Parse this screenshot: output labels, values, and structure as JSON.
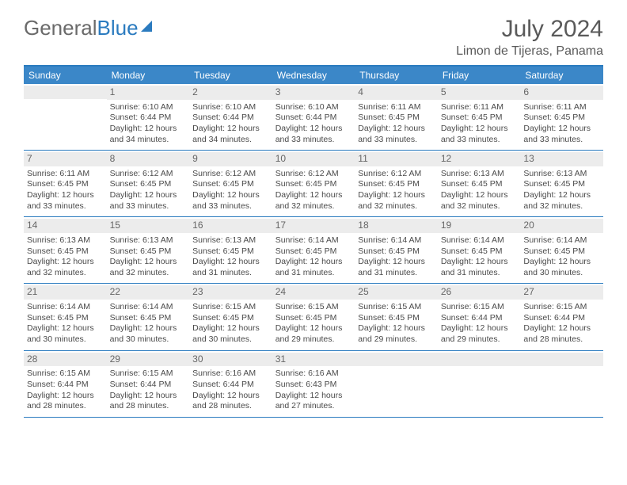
{
  "logo": {
    "part1": "General",
    "part2": "Blue"
  },
  "header": {
    "title": "July 2024",
    "location": "Limon de Tijeras, Panama"
  },
  "colors": {
    "brand_blue": "#2b7bbf",
    "header_bar": "#3b87c8",
    "daynum_bg": "#ececec",
    "text_gray": "#5a5a5a",
    "body_text": "#4a4a4a"
  },
  "weekdays": [
    "Sunday",
    "Monday",
    "Tuesday",
    "Wednesday",
    "Thursday",
    "Friday",
    "Saturday"
  ],
  "weeks": [
    [
      {
        "num": "",
        "lines": []
      },
      {
        "num": "1",
        "lines": [
          "Sunrise: 6:10 AM",
          "Sunset: 6:44 PM",
          "Daylight: 12 hours",
          "and 34 minutes."
        ]
      },
      {
        "num": "2",
        "lines": [
          "Sunrise: 6:10 AM",
          "Sunset: 6:44 PM",
          "Daylight: 12 hours",
          "and 34 minutes."
        ]
      },
      {
        "num": "3",
        "lines": [
          "Sunrise: 6:10 AM",
          "Sunset: 6:44 PM",
          "Daylight: 12 hours",
          "and 33 minutes."
        ]
      },
      {
        "num": "4",
        "lines": [
          "Sunrise: 6:11 AM",
          "Sunset: 6:45 PM",
          "Daylight: 12 hours",
          "and 33 minutes."
        ]
      },
      {
        "num": "5",
        "lines": [
          "Sunrise: 6:11 AM",
          "Sunset: 6:45 PM",
          "Daylight: 12 hours",
          "and 33 minutes."
        ]
      },
      {
        "num": "6",
        "lines": [
          "Sunrise: 6:11 AM",
          "Sunset: 6:45 PM",
          "Daylight: 12 hours",
          "and 33 minutes."
        ]
      }
    ],
    [
      {
        "num": "7",
        "lines": [
          "Sunrise: 6:11 AM",
          "Sunset: 6:45 PM",
          "Daylight: 12 hours",
          "and 33 minutes."
        ]
      },
      {
        "num": "8",
        "lines": [
          "Sunrise: 6:12 AM",
          "Sunset: 6:45 PM",
          "Daylight: 12 hours",
          "and 33 minutes."
        ]
      },
      {
        "num": "9",
        "lines": [
          "Sunrise: 6:12 AM",
          "Sunset: 6:45 PM",
          "Daylight: 12 hours",
          "and 33 minutes."
        ]
      },
      {
        "num": "10",
        "lines": [
          "Sunrise: 6:12 AM",
          "Sunset: 6:45 PM",
          "Daylight: 12 hours",
          "and 32 minutes."
        ]
      },
      {
        "num": "11",
        "lines": [
          "Sunrise: 6:12 AM",
          "Sunset: 6:45 PM",
          "Daylight: 12 hours",
          "and 32 minutes."
        ]
      },
      {
        "num": "12",
        "lines": [
          "Sunrise: 6:13 AM",
          "Sunset: 6:45 PM",
          "Daylight: 12 hours",
          "and 32 minutes."
        ]
      },
      {
        "num": "13",
        "lines": [
          "Sunrise: 6:13 AM",
          "Sunset: 6:45 PM",
          "Daylight: 12 hours",
          "and 32 minutes."
        ]
      }
    ],
    [
      {
        "num": "14",
        "lines": [
          "Sunrise: 6:13 AM",
          "Sunset: 6:45 PM",
          "Daylight: 12 hours",
          "and 32 minutes."
        ]
      },
      {
        "num": "15",
        "lines": [
          "Sunrise: 6:13 AM",
          "Sunset: 6:45 PM",
          "Daylight: 12 hours",
          "and 32 minutes."
        ]
      },
      {
        "num": "16",
        "lines": [
          "Sunrise: 6:13 AM",
          "Sunset: 6:45 PM",
          "Daylight: 12 hours",
          "and 31 minutes."
        ]
      },
      {
        "num": "17",
        "lines": [
          "Sunrise: 6:14 AM",
          "Sunset: 6:45 PM",
          "Daylight: 12 hours",
          "and 31 minutes."
        ]
      },
      {
        "num": "18",
        "lines": [
          "Sunrise: 6:14 AM",
          "Sunset: 6:45 PM",
          "Daylight: 12 hours",
          "and 31 minutes."
        ]
      },
      {
        "num": "19",
        "lines": [
          "Sunrise: 6:14 AM",
          "Sunset: 6:45 PM",
          "Daylight: 12 hours",
          "and 31 minutes."
        ]
      },
      {
        "num": "20",
        "lines": [
          "Sunrise: 6:14 AM",
          "Sunset: 6:45 PM",
          "Daylight: 12 hours",
          "and 30 minutes."
        ]
      }
    ],
    [
      {
        "num": "21",
        "lines": [
          "Sunrise: 6:14 AM",
          "Sunset: 6:45 PM",
          "Daylight: 12 hours",
          "and 30 minutes."
        ]
      },
      {
        "num": "22",
        "lines": [
          "Sunrise: 6:14 AM",
          "Sunset: 6:45 PM",
          "Daylight: 12 hours",
          "and 30 minutes."
        ]
      },
      {
        "num": "23",
        "lines": [
          "Sunrise: 6:15 AM",
          "Sunset: 6:45 PM",
          "Daylight: 12 hours",
          "and 30 minutes."
        ]
      },
      {
        "num": "24",
        "lines": [
          "Sunrise: 6:15 AM",
          "Sunset: 6:45 PM",
          "Daylight: 12 hours",
          "and 29 minutes."
        ]
      },
      {
        "num": "25",
        "lines": [
          "Sunrise: 6:15 AM",
          "Sunset: 6:45 PM",
          "Daylight: 12 hours",
          "and 29 minutes."
        ]
      },
      {
        "num": "26",
        "lines": [
          "Sunrise: 6:15 AM",
          "Sunset: 6:44 PM",
          "Daylight: 12 hours",
          "and 29 minutes."
        ]
      },
      {
        "num": "27",
        "lines": [
          "Sunrise: 6:15 AM",
          "Sunset: 6:44 PM",
          "Daylight: 12 hours",
          "and 28 minutes."
        ]
      }
    ],
    [
      {
        "num": "28",
        "lines": [
          "Sunrise: 6:15 AM",
          "Sunset: 6:44 PM",
          "Daylight: 12 hours",
          "and 28 minutes."
        ]
      },
      {
        "num": "29",
        "lines": [
          "Sunrise: 6:15 AM",
          "Sunset: 6:44 PM",
          "Daylight: 12 hours",
          "and 28 minutes."
        ]
      },
      {
        "num": "30",
        "lines": [
          "Sunrise: 6:16 AM",
          "Sunset: 6:44 PM",
          "Daylight: 12 hours",
          "and 28 minutes."
        ]
      },
      {
        "num": "31",
        "lines": [
          "Sunrise: 6:16 AM",
          "Sunset: 6:43 PM",
          "Daylight: 12 hours",
          "and 27 minutes."
        ]
      },
      {
        "num": "",
        "lines": []
      },
      {
        "num": "",
        "lines": []
      },
      {
        "num": "",
        "lines": []
      }
    ]
  ]
}
